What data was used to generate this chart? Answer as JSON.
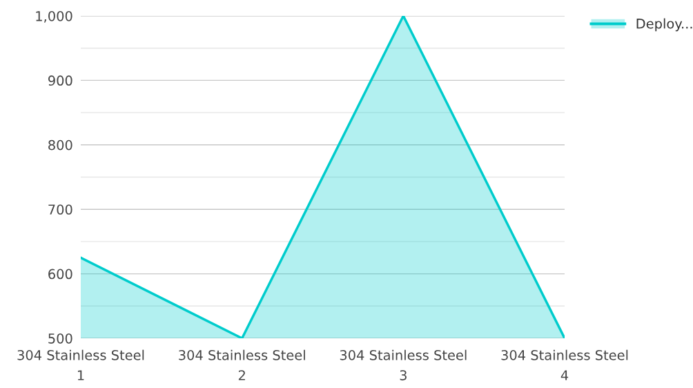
{
  "chart_data": {
    "type": "area",
    "categories": [
      "304 Stainless Steel\n1",
      "304 Stainless Steel\n2",
      "304 Stainless Steel\n3",
      "304 Stainless Steel\n4"
    ],
    "series": [
      {
        "name": "Deploy...",
        "color": "#00cccc",
        "values": [
          625,
          500,
          1000,
          500
        ]
      }
    ],
    "ylim": [
      500,
      1000
    ],
    "yticks": [
      500,
      {
        "value": 550,
        "label": null
      },
      600,
      {
        "value": 650,
        "label": null
      },
      700,
      {
        "value": 750,
        "label": null
      },
      800,
      {
        "value": 850,
        "label": null
      },
      900,
      {
        "value": 950,
        "label": null
      },
      {
        "value": 1000,
        "label": "1,000"
      }
    ],
    "grid": "y",
    "legend": "top right"
  }
}
